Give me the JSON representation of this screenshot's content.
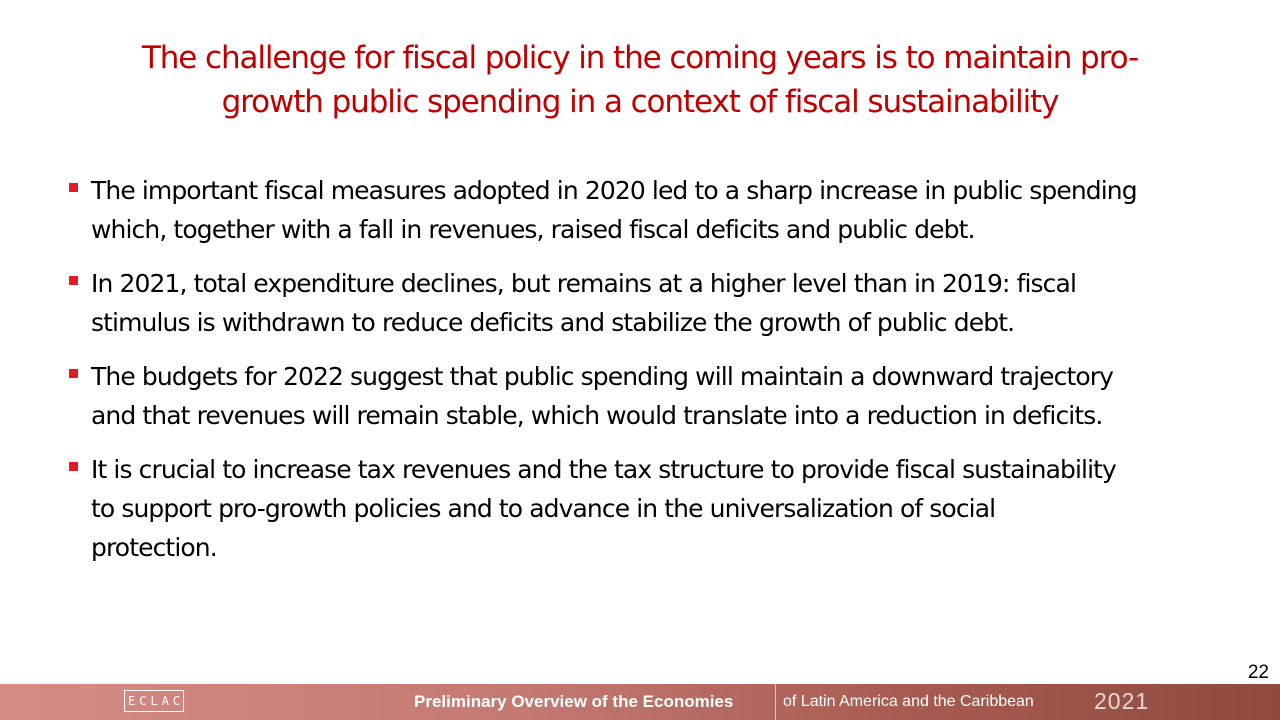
{
  "slide": {
    "title_line1": "The challenge for fiscal policy in the coming years is to maintain pro-",
    "title_line2": "growth public spending in a context of fiscal sustainability",
    "bullets": [
      {
        "lines": [
          "The important fiscal measures adopted in 2020 led to a sharp increase in public spending",
          "which, together with a fall in revenues, raised fiscal deficits and public debt."
        ]
      },
      {
        "lines": [
          "In 2021, total expenditure declines, but remains at a higher level than in 2019: fiscal",
          "stimulus is withdrawn to reduce deficits and stabilize the growth of public debt."
        ]
      },
      {
        "lines": [
          "The budgets for 2022 suggest that public spending will maintain a downward trajectory",
          "and that revenues will remain stable, which would translate into a reduction in deficits."
        ]
      },
      {
        "lines": [
          "It is crucial to increase tax revenues and the tax structure to provide fiscal sustainability",
          "to support pro-growth policies and to advance in the universalization of social",
          "protection."
        ]
      }
    ],
    "page_number": "22"
  },
  "footer": {
    "logo_text": "ECLAC",
    "title_bold": "Preliminary Overview of the Economies",
    "title_regular": "of Latin America and the Caribbean",
    "year": "2021"
  },
  "colors": {
    "title": "#c00000",
    "bullet_marker": "#e31b23",
    "footer_bar_start": "#d58c86",
    "footer_bar_end": "#8f4a3d"
  }
}
